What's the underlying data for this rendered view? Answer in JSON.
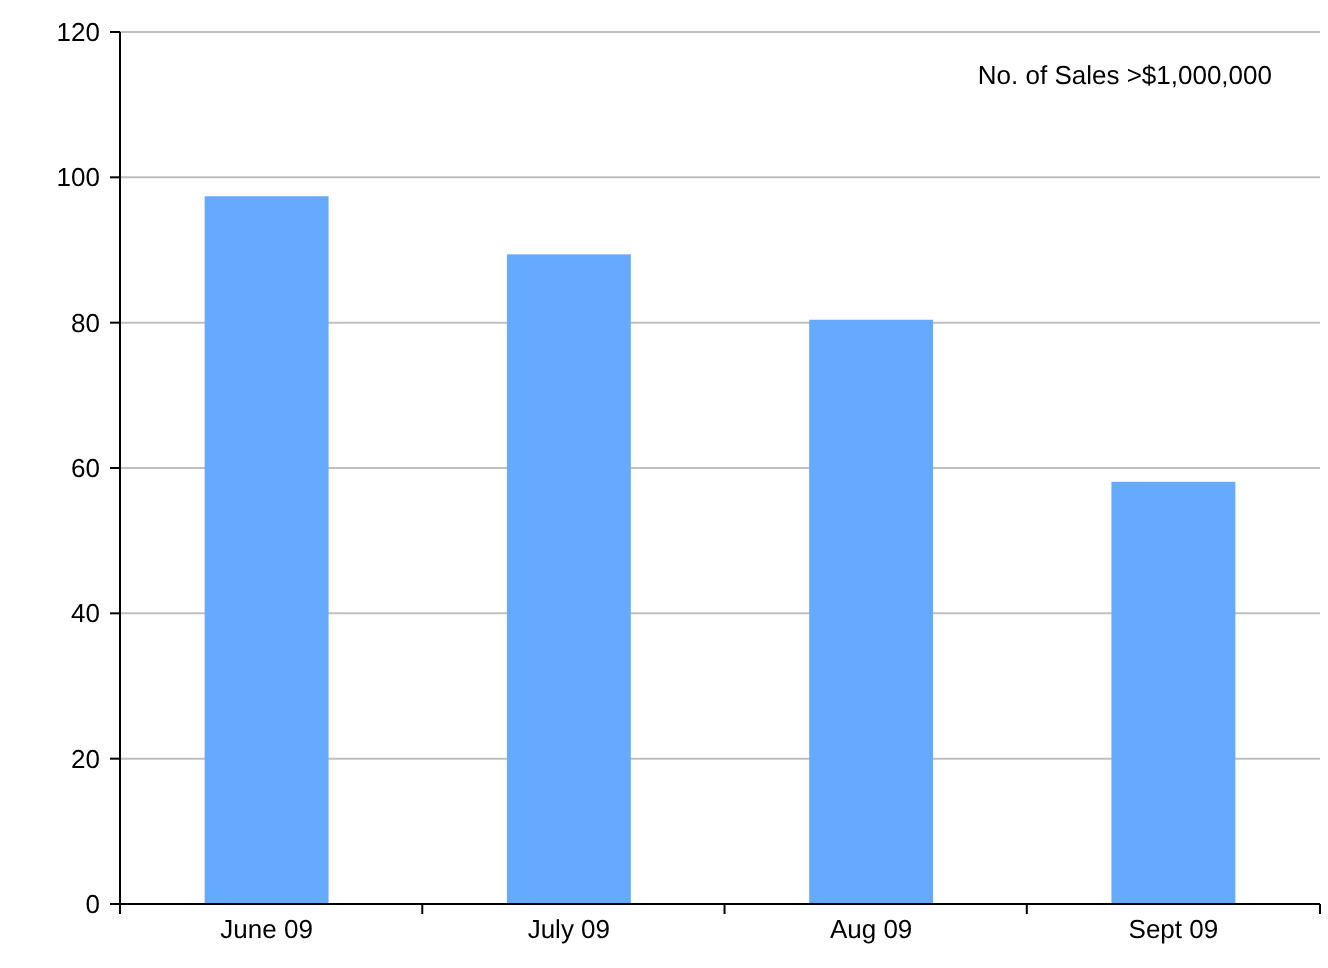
{
  "chart_data": {
    "type": "bar",
    "title": "No. of Sales >$1,000,000",
    "categories": [
      "June 09",
      "July 09",
      "Aug 09",
      "Sept 09"
    ],
    "values": [
      97.4,
      89.4,
      80.4,
      58.1
    ],
    "color": "#66aaff",
    "ylim": [
      0,
      120
    ],
    "yticks": [
      0,
      20,
      40,
      60,
      80,
      100,
      120
    ],
    "grid": "y"
  }
}
